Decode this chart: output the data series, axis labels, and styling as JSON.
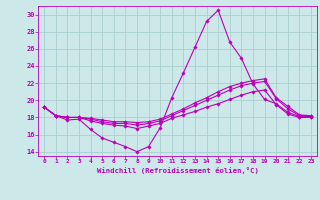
{
  "xlabel": "Windchill (Refroidissement éolien,°C)",
  "bg_color": "#cce8e8",
  "grid_color": "#aacfcf",
  "line_color": "#bb00bb",
  "xlim": [
    -0.5,
    23.5
  ],
  "ylim": [
    13.5,
    31.0
  ],
  "xticks": [
    0,
    1,
    2,
    3,
    4,
    5,
    6,
    7,
    8,
    9,
    10,
    11,
    12,
    13,
    14,
    15,
    16,
    17,
    18,
    19,
    20,
    21,
    22,
    23
  ],
  "yticks": [
    14,
    16,
    18,
    20,
    22,
    24,
    26,
    28,
    30
  ],
  "lines": [
    {
      "x": [
        0,
        1,
        2,
        3,
        4,
        5,
        6,
        7,
        8,
        9,
        10,
        11,
        12,
        13,
        14,
        15,
        16,
        17,
        18,
        19,
        20,
        21,
        22,
        23
      ],
      "y": [
        19.2,
        18.2,
        17.7,
        17.8,
        16.6,
        15.6,
        15.1,
        14.6,
        14.0,
        14.6,
        16.8,
        20.3,
        23.2,
        26.2,
        29.2,
        30.5,
        26.8,
        24.9,
        21.9,
        20.1,
        19.6,
        18.6,
        18.1,
        18.1
      ]
    },
    {
      "x": [
        0,
        1,
        2,
        3,
        4,
        5,
        6,
        7,
        8,
        9,
        10,
        11,
        12,
        13,
        14,
        15,
        16,
        17,
        18,
        19,
        20,
        21,
        22,
        23
      ],
      "y": [
        19.2,
        18.2,
        18.0,
        18.0,
        17.6,
        17.3,
        17.1,
        17.0,
        16.7,
        17.0,
        17.3,
        17.9,
        18.3,
        18.7,
        19.2,
        19.6,
        20.1,
        20.6,
        21.0,
        21.2,
        19.5,
        18.4,
        18.0,
        18.0
      ]
    },
    {
      "x": [
        0,
        1,
        2,
        3,
        4,
        5,
        6,
        7,
        8,
        9,
        10,
        11,
        12,
        13,
        14,
        15,
        16,
        17,
        18,
        19,
        20,
        21,
        22,
        23
      ],
      "y": [
        19.2,
        18.2,
        18.0,
        18.0,
        17.8,
        17.5,
        17.3,
        17.3,
        17.1,
        17.3,
        17.6,
        18.2,
        18.8,
        19.4,
        20.0,
        20.6,
        21.2,
        21.7,
        22.0,
        22.2,
        20.2,
        19.0,
        18.2,
        18.2
      ]
    },
    {
      "x": [
        0,
        1,
        2,
        3,
        4,
        5,
        6,
        7,
        8,
        9,
        10,
        11,
        12,
        13,
        14,
        15,
        16,
        17,
        18,
        19,
        20,
        21,
        22,
        23
      ],
      "y": [
        19.2,
        18.2,
        18.0,
        18.0,
        17.9,
        17.7,
        17.5,
        17.5,
        17.4,
        17.5,
        17.8,
        18.4,
        19.0,
        19.7,
        20.3,
        21.0,
        21.6,
        22.0,
        22.3,
        22.5,
        20.3,
        19.3,
        18.3,
        18.2
      ]
    }
  ]
}
